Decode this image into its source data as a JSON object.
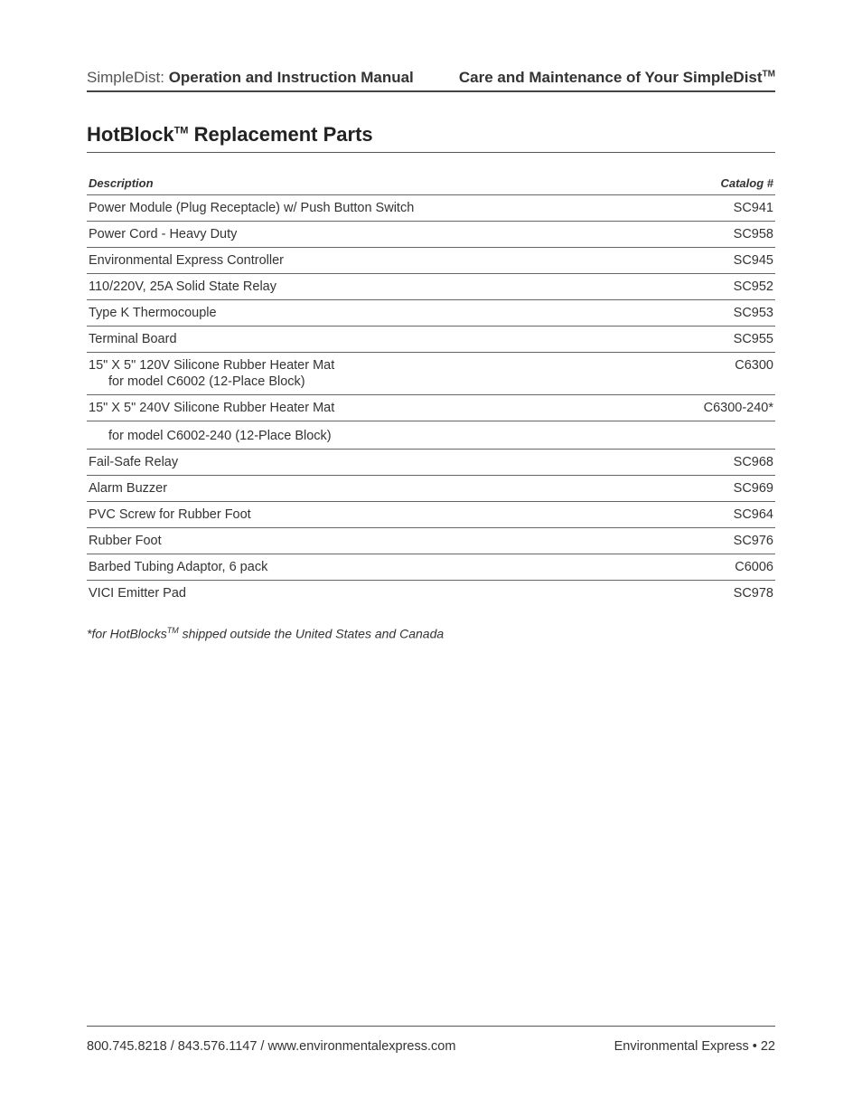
{
  "header": {
    "left_prefix": "SimpleDist:",
    "left_title": "Operation and Instruction Manual",
    "right_prefix": "Care and Maintenance of Your SimpleDist",
    "right_tm": "TM"
  },
  "section": {
    "title_part1": "HotBlock",
    "title_tm": "TM",
    "title_part2": " Replacement Parts"
  },
  "table": {
    "head_description": "Description",
    "head_catalog": "Catalog #",
    "rows": [
      {
        "description": "Power Module (Plug Receptacle) w/ Push Button Switch",
        "catalog": "SC941"
      },
      {
        "description": "Power Cord - Heavy Duty",
        "catalog": "SC958"
      },
      {
        "description": "Environmental Express Controller",
        "catalog": "SC945"
      },
      {
        "description": "110/220V, 25A Solid State Relay",
        "catalog": "SC952"
      },
      {
        "description": "Type K Thermocouple",
        "catalog": "SC953"
      },
      {
        "description": "Terminal Board",
        "catalog": "SC955"
      },
      {
        "description": "15\" X 5\" 120V Silicone Rubber Heater Mat",
        "subline": "for model C6002 (12-Place Block)",
        "catalog": "C6300"
      },
      {
        "description": "15\" X 5\" 240V Silicone Rubber Heater Mat",
        "catalog": "C6300-240*"
      },
      {
        "subline_only": true,
        "subline": "for model C6002-240 (12-Place Block)"
      },
      {
        "description": "Fail-Safe Relay",
        "catalog": "SC968"
      },
      {
        "description": "Alarm Buzzer",
        "catalog": "SC969"
      },
      {
        "description": "PVC Screw for Rubber Foot",
        "catalog": "SC964"
      },
      {
        "description": "Rubber Foot",
        "catalog": "SC976"
      },
      {
        "description": "Barbed Tubing Adaptor, 6 pack",
        "catalog": "C6006"
      },
      {
        "description": "VICI Emitter Pad",
        "catalog": "SC978",
        "last": true
      }
    ]
  },
  "footnote": {
    "prefix": "*for HotBlocks",
    "tm": "TM",
    "suffix": " shipped outside the United States and Canada"
  },
  "footer": {
    "left": "800.745.8218 / 843.576.1147 / www.environmentalexpress.com",
    "right": "Environmental Express • 22"
  }
}
